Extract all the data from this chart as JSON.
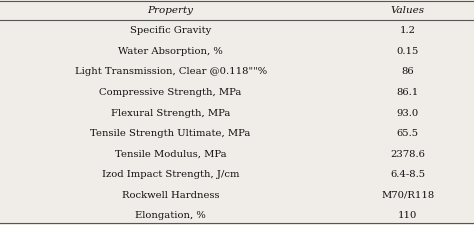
{
  "headers": [
    "Property",
    "Values"
  ],
  "rows": [
    [
      "Specific Gravity",
      "1.2"
    ],
    [
      "Water Absorption, %",
      "0.15"
    ],
    [
      "Light Transmission, Clear @0.118\"\"%",
      "86"
    ],
    [
      "Compressive Strength, MPa",
      "86.1"
    ],
    [
      "Flexural Strength, MPa",
      "93.0"
    ],
    [
      "Tensile Strength Ultimate, MPa",
      "65.5"
    ],
    [
      "Tensile Modulus, MPa",
      "2378.6"
    ],
    [
      "Izod Impact Strength, J/cm",
      "6.4-8.5"
    ],
    [
      "Rockwell Hardness",
      "M70/R118"
    ],
    [
      "Elongation, %",
      "110"
    ]
  ],
  "col_sep": 0.72,
  "header_line_color": "#555555",
  "bg_color": "#f0ede8",
  "text_color": "#111111",
  "font_size": 7.2,
  "header_font_size": 7.5,
  "figsize": [
    4.74,
    2.26
  ],
  "dpi": 100
}
